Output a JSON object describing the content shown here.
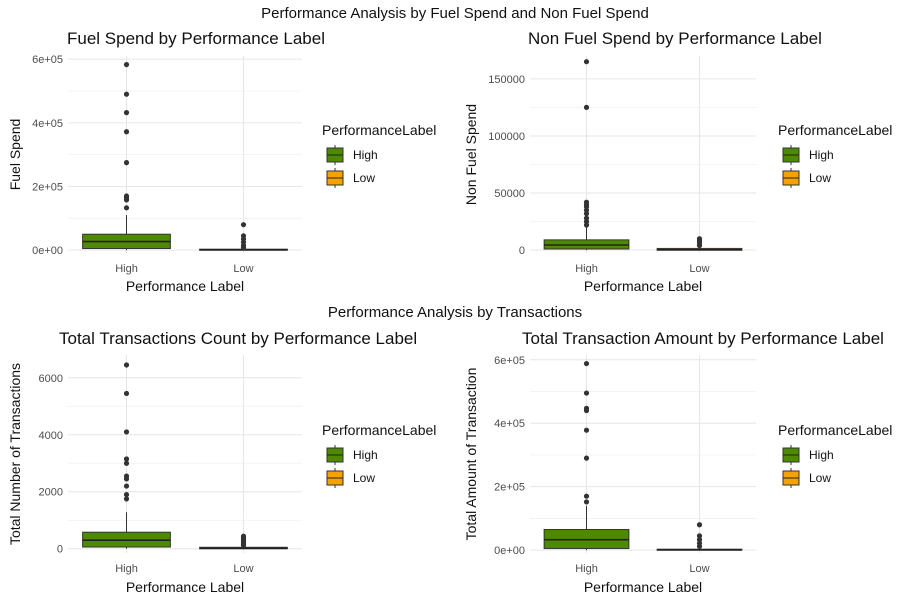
{
  "figure": {
    "top_title": "Performance Analysis by Fuel Spend and Non Fuel Spend",
    "bottom_title": "Performance Analysis by Transactions"
  },
  "colors": {
    "High": "#4e8a00",
    "Low": "#f5a300",
    "grid": "#e6e6e6",
    "text": "#111111",
    "tick": "#4d4d4d"
  },
  "chart_data": [
    {
      "type": "box",
      "title": "Fuel Spend by Performance Label",
      "xlabel": "Performance Label",
      "ylabel": "Fuel Spend",
      "categories": [
        "High",
        "Low"
      ],
      "ylim": [
        -9000,
        610000
      ],
      "yticks": [
        0,
        200000,
        400000,
        600000
      ],
      "ytick_labels": [
        "0e+00",
        "2e+05",
        "4e+05",
        "6e+05"
      ],
      "legend": {
        "title": "PerformanceLabel",
        "entries": [
          "High",
          "Low"
        ],
        "position": "right"
      },
      "boxes": [
        {
          "label": "High",
          "q1": 5000,
          "median": 27000,
          "q3": 50000,
          "whisker_low": 0,
          "whisker_high": 110000,
          "outliers": [
            133000,
            158000,
            165000,
            170000,
            275000,
            372000,
            432000,
            490000,
            583000
          ]
        },
        {
          "label": "Low",
          "q1": 0,
          "median": 1000,
          "q3": 3000,
          "whisker_low": 0,
          "whisker_high": 7000,
          "outliers": [
            8000,
            15000,
            25000,
            35000,
            45000,
            80000
          ]
        }
      ]
    },
    {
      "type": "box",
      "title": "Non Fuel Spend by Performance Label",
      "xlabel": "Performance Label",
      "ylabel": "Non Fuel Spend",
      "categories": [
        "High",
        "Low"
      ],
      "ylim": [
        -2500,
        170000
      ],
      "yticks": [
        0,
        50000,
        100000,
        150000
      ],
      "ytick_labels": [
        "0",
        "50000",
        "100000",
        "150000"
      ],
      "legend": {
        "title": "PerformanceLabel",
        "entries": [
          "High",
          "Low"
        ],
        "position": "right"
      },
      "boxes": [
        {
          "label": "High",
          "q1": 1000,
          "median": 4500,
          "q3": 9000,
          "whisker_low": 0,
          "whisker_high": 20000,
          "outliers": [
            22000,
            25000,
            28000,
            32000,
            35000,
            38000,
            40000,
            42000,
            125000,
            165000
          ]
        },
        {
          "label": "Low",
          "q1": 0,
          "median": 300,
          "q3": 1500,
          "whisker_low": 0,
          "whisker_high": 3000,
          "outliers": [
            4000,
            6000,
            8000,
            10000
          ]
        }
      ]
    },
    {
      "type": "box",
      "title": "Total Transactions Count by Performance Label",
      "xlabel": "Performance Label",
      "ylabel": "Total Number of Transactions",
      "categories": [
        "High",
        "Low"
      ],
      "ylim": [
        -150,
        6800
      ],
      "yticks": [
        0,
        2000,
        4000,
        6000
      ],
      "ytick_labels": [
        "0",
        "2000",
        "4000",
        "6000"
      ],
      "legend": {
        "title": "PerformanceLabel",
        "entries": [
          "High",
          "Low"
        ],
        "position": "right"
      },
      "boxes": [
        {
          "label": "High",
          "q1": 60,
          "median": 300,
          "q3": 580,
          "whisker_low": 0,
          "whisker_high": 1280,
          "outliers": [
            1750,
            1900,
            2200,
            2450,
            2550,
            3000,
            3150,
            4100,
            5450,
            6450
          ]
        },
        {
          "label": "Low",
          "q1": 0,
          "median": 15,
          "q3": 50,
          "whisker_low": 0,
          "whisker_high": 100,
          "outliers": [
            120,
            160,
            200,
            260,
            320,
            380,
            440
          ]
        }
      ]
    },
    {
      "type": "box",
      "title": "Total Transaction Amount by Performance Label",
      "xlabel": "Performance Label",
      "ylabel": "Total Amount of Transaction",
      "categories": [
        "High",
        "Low"
      ],
      "ylim": [
        -9000,
        615000
      ],
      "yticks": [
        0,
        200000,
        400000,
        600000
      ],
      "ytick_labels": [
        "0e+00",
        "2e+05",
        "4e+05",
        "6e+05"
      ],
      "legend": {
        "title": "PerformanceLabel",
        "entries": [
          "High",
          "Low"
        ],
        "position": "right"
      },
      "boxes": [
        {
          "label": "High",
          "q1": 5000,
          "median": 33000,
          "q3": 65000,
          "whisker_low": 0,
          "whisker_high": 140000,
          "outliers": [
            152000,
            170000,
            290000,
            378000,
            440000,
            447000,
            495000,
            588000
          ]
        },
        {
          "label": "Low",
          "q1": 0,
          "median": 1000,
          "q3": 3000,
          "whisker_low": 0,
          "whisker_high": 8000,
          "outliers": [
            12000,
            22000,
            33000,
            45000,
            80000
          ]
        }
      ]
    }
  ]
}
